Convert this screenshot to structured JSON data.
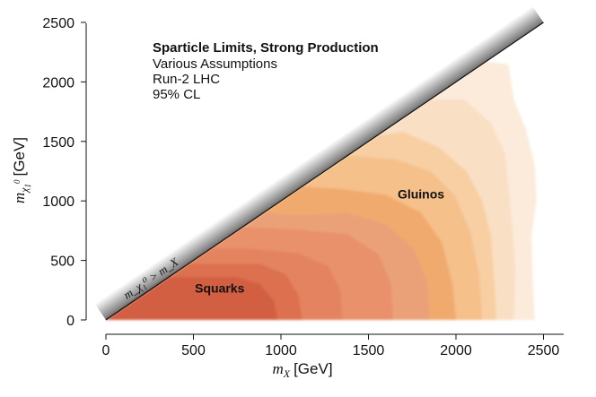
{
  "chart_data": {
    "type": "area",
    "title": "Sparticle Limits, Strong Production",
    "annotations": [
      "Various Assumptions",
      "Run-2 LHC",
      "95% CL"
    ],
    "xlabel": {
      "symbol": "m",
      "sub": "X",
      "unit": "[GeV]"
    },
    "ylabel": {
      "symbol": "m",
      "sub": "χ",
      "subsub": "1",
      "sup": "0",
      "unit": "[GeV]"
    },
    "xlim": [
      0,
      2600
    ],
    "ylim": [
      0,
      2500
    ],
    "xticks": [
      0,
      500,
      1000,
      1500,
      2000,
      2500
    ],
    "yticks": [
      0,
      500,
      1000,
      1500,
      2000,
      2500
    ],
    "diagonal_label": "m_χ₁⁰ > m_X",
    "region_labels": {
      "squarks": {
        "text": "Squarks",
        "x": 650,
        "y": 230
      },
      "gluinos": {
        "text": "Gluinos",
        "x": 1800,
        "y": 1020
      }
    },
    "series": [
      {
        "name": "gluino-1",
        "group": "gluino",
        "color": "#fbe8d4",
        "points": [
          [
            0,
            0
          ],
          [
            2450,
            0
          ],
          [
            2440,
            300
          ],
          [
            2430,
            700
          ],
          [
            2460,
            1000
          ],
          [
            2450,
            1300
          ],
          [
            2400,
            1600
          ],
          [
            2330,
            1850
          ],
          [
            2300,
            2150
          ],
          [
            2170,
            2170
          ],
          [
            0,
            0
          ]
        ]
      },
      {
        "name": "gluino-2",
        "group": "gluino",
        "color": "#f9ddbf",
        "points": [
          [
            0,
            0
          ],
          [
            2330,
            0
          ],
          [
            2340,
            400
          ],
          [
            2320,
            800
          ],
          [
            2300,
            1100
          ],
          [
            2280,
            1400
          ],
          [
            2200,
            1650
          ],
          [
            2050,
            1850
          ],
          [
            1850,
            1850
          ],
          [
            0,
            0
          ]
        ]
      },
      {
        "name": "gluino-3",
        "group": "gluino",
        "color": "#f7cc9f",
        "points": [
          [
            0,
            0
          ],
          [
            2230,
            0
          ],
          [
            2220,
            300
          ],
          [
            2200,
            700
          ],
          [
            2150,
            1000
          ],
          [
            2060,
            1250
          ],
          [
            1900,
            1450
          ],
          [
            1700,
            1580
          ],
          [
            1550,
            1550
          ],
          [
            0,
            0
          ]
        ]
      },
      {
        "name": "gluino-4",
        "group": "gluino",
        "color": "#f5bd85",
        "points": [
          [
            0,
            0
          ],
          [
            2150,
            0
          ],
          [
            2130,
            400
          ],
          [
            2080,
            750
          ],
          [
            1990,
            1050
          ],
          [
            1850,
            1250
          ],
          [
            1650,
            1350
          ],
          [
            1380,
            1380
          ],
          [
            0,
            0
          ]
        ]
      },
      {
        "name": "gluino-5",
        "group": "gluino",
        "color": "#efa66a",
        "points": [
          [
            0,
            0
          ],
          [
            2000,
            0
          ],
          [
            1980,
            300
          ],
          [
            1920,
            650
          ],
          [
            1800,
            900
          ],
          [
            1600,
            1050
          ],
          [
            1350,
            1100
          ],
          [
            1120,
            1120
          ],
          [
            0,
            0
          ]
        ]
      },
      {
        "name": "squark-1",
        "group": "squark",
        "color": "#ea9f7a",
        "points": [
          [
            0,
            0
          ],
          [
            1850,
            0
          ],
          [
            1840,
            300
          ],
          [
            1760,
            600
          ],
          [
            1600,
            800
          ],
          [
            1380,
            900
          ],
          [
            1100,
            880
          ],
          [
            900,
            900
          ],
          [
            0,
            0
          ]
        ]
      },
      {
        "name": "squark-2",
        "group": "squark",
        "color": "#e78d68",
        "points": [
          [
            0,
            0
          ],
          [
            1640,
            0
          ],
          [
            1630,
            300
          ],
          [
            1560,
            550
          ],
          [
            1380,
            720
          ],
          [
            1100,
            760
          ],
          [
            780,
            780
          ],
          [
            0,
            0
          ]
        ]
      },
      {
        "name": "squark-3",
        "group": "squark",
        "color": "#e27f5c",
        "points": [
          [
            0,
            0
          ],
          [
            1350,
            0
          ],
          [
            1340,
            250
          ],
          [
            1270,
            450
          ],
          [
            1100,
            560
          ],
          [
            800,
            600
          ],
          [
            600,
            600
          ],
          [
            0,
            0
          ]
        ]
      },
      {
        "name": "squark-4",
        "group": "squark",
        "color": "#d96a4b",
        "points": [
          [
            0,
            0
          ],
          [
            1120,
            0
          ],
          [
            1100,
            200
          ],
          [
            1030,
            380
          ],
          [
            880,
            470
          ],
          [
            480,
            470
          ],
          [
            0,
            0
          ]
        ]
      },
      {
        "name": "squark-5",
        "group": "squark",
        "color": "#cf5a3e",
        "points": [
          [
            0,
            0
          ],
          [
            980,
            0
          ],
          [
            960,
            160
          ],
          [
            880,
            300
          ],
          [
            740,
            360
          ],
          [
            360,
            360
          ],
          [
            0,
            0
          ]
        ]
      }
    ]
  }
}
